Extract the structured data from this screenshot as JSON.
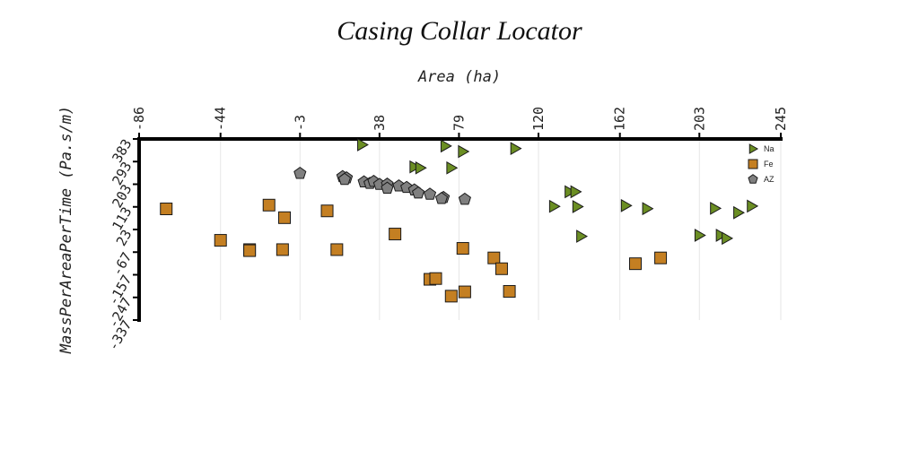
{
  "chart_data": {
    "type": "scatter",
    "title": "Casing Collar Locator",
    "xlabel": "Area (ha)",
    "ylabel": "MassPerAreaPerTime (Pa.s/m)",
    "x_ticks": [
      -86,
      -44,
      -3,
      38,
      79,
      120,
      162,
      203,
      245
    ],
    "y_ticks": [
      383,
      293,
      203,
      113,
      23,
      -67,
      -157,
      -247,
      -337
    ],
    "x_tick_labels": [
      "-86",
      "-44",
      "-3",
      "38",
      "79",
      "120",
      "162",
      "203",
      "245"
    ],
    "y_tick_labels": [
      "383",
      "293",
      "203",
      "113",
      "23",
      "-67",
      "-157",
      "-247",
      "-337"
    ],
    "xlim": [
      -86,
      245
    ],
    "ylim": [
      -337,
      383
    ],
    "grid": "vertical",
    "legend_position": "top-right",
    "series": [
      {
        "name": "Na",
        "marker": "triangle",
        "color": "#6b8e23",
        "points": [
          [
            29,
            360
          ],
          [
            72,
            355
          ],
          [
            81,
            333
          ],
          [
            108,
            345
          ],
          [
            56,
            272
          ],
          [
            59,
            268
          ],
          [
            75,
            268
          ],
          [
            136,
            173
          ],
          [
            139,
            173
          ],
          [
            128,
            115
          ],
          [
            140,
            114
          ],
          [
            165,
            118
          ],
          [
            176,
            106
          ],
          [
            211,
            107
          ],
          [
            223,
            90
          ],
          [
            230,
            116
          ],
          [
            142,
            -4
          ],
          [
            203,
            0
          ],
          [
            214,
            0
          ],
          [
            217,
            -12
          ]
        ]
      },
      {
        "name": "Fe",
        "marker": "square",
        "color": "#c47f22",
        "points": [
          [
            -72,
            105
          ],
          [
            -19,
            120
          ],
          [
            -11,
            70
          ],
          [
            11,
            97
          ],
          [
            -44,
            -20
          ],
          [
            -29,
            -57
          ],
          [
            -29,
            -61
          ],
          [
            -12,
            -57
          ],
          [
            16,
            -57
          ],
          [
            46,
            5
          ],
          [
            81,
            -52
          ],
          [
            97,
            -90
          ],
          [
            101,
            -133
          ],
          [
            64,
            -175
          ],
          [
            67,
            -172
          ],
          [
            75,
            -242
          ],
          [
            82,
            -225
          ],
          [
            105,
            -223
          ],
          [
            170,
            -113
          ],
          [
            183,
            -90
          ]
        ]
      },
      {
        "name": "AZ",
        "marker": "pentagon",
        "color": "#808080",
        "points": [
          [
            -3,
            246
          ],
          [
            19,
            233
          ],
          [
            21,
            228
          ],
          [
            20,
            222
          ],
          [
            30,
            212
          ],
          [
            33,
            206
          ],
          [
            35,
            214
          ],
          [
            38,
            202
          ],
          [
            42,
            203
          ],
          [
            42,
            187
          ],
          [
            48,
            196
          ],
          [
            52,
            190
          ],
          [
            56,
            180
          ],
          [
            58,
            168
          ],
          [
            64,
            163
          ],
          [
            71,
            150
          ],
          [
            70,
            146
          ],
          [
            82,
            143
          ]
        ]
      }
    ]
  }
}
